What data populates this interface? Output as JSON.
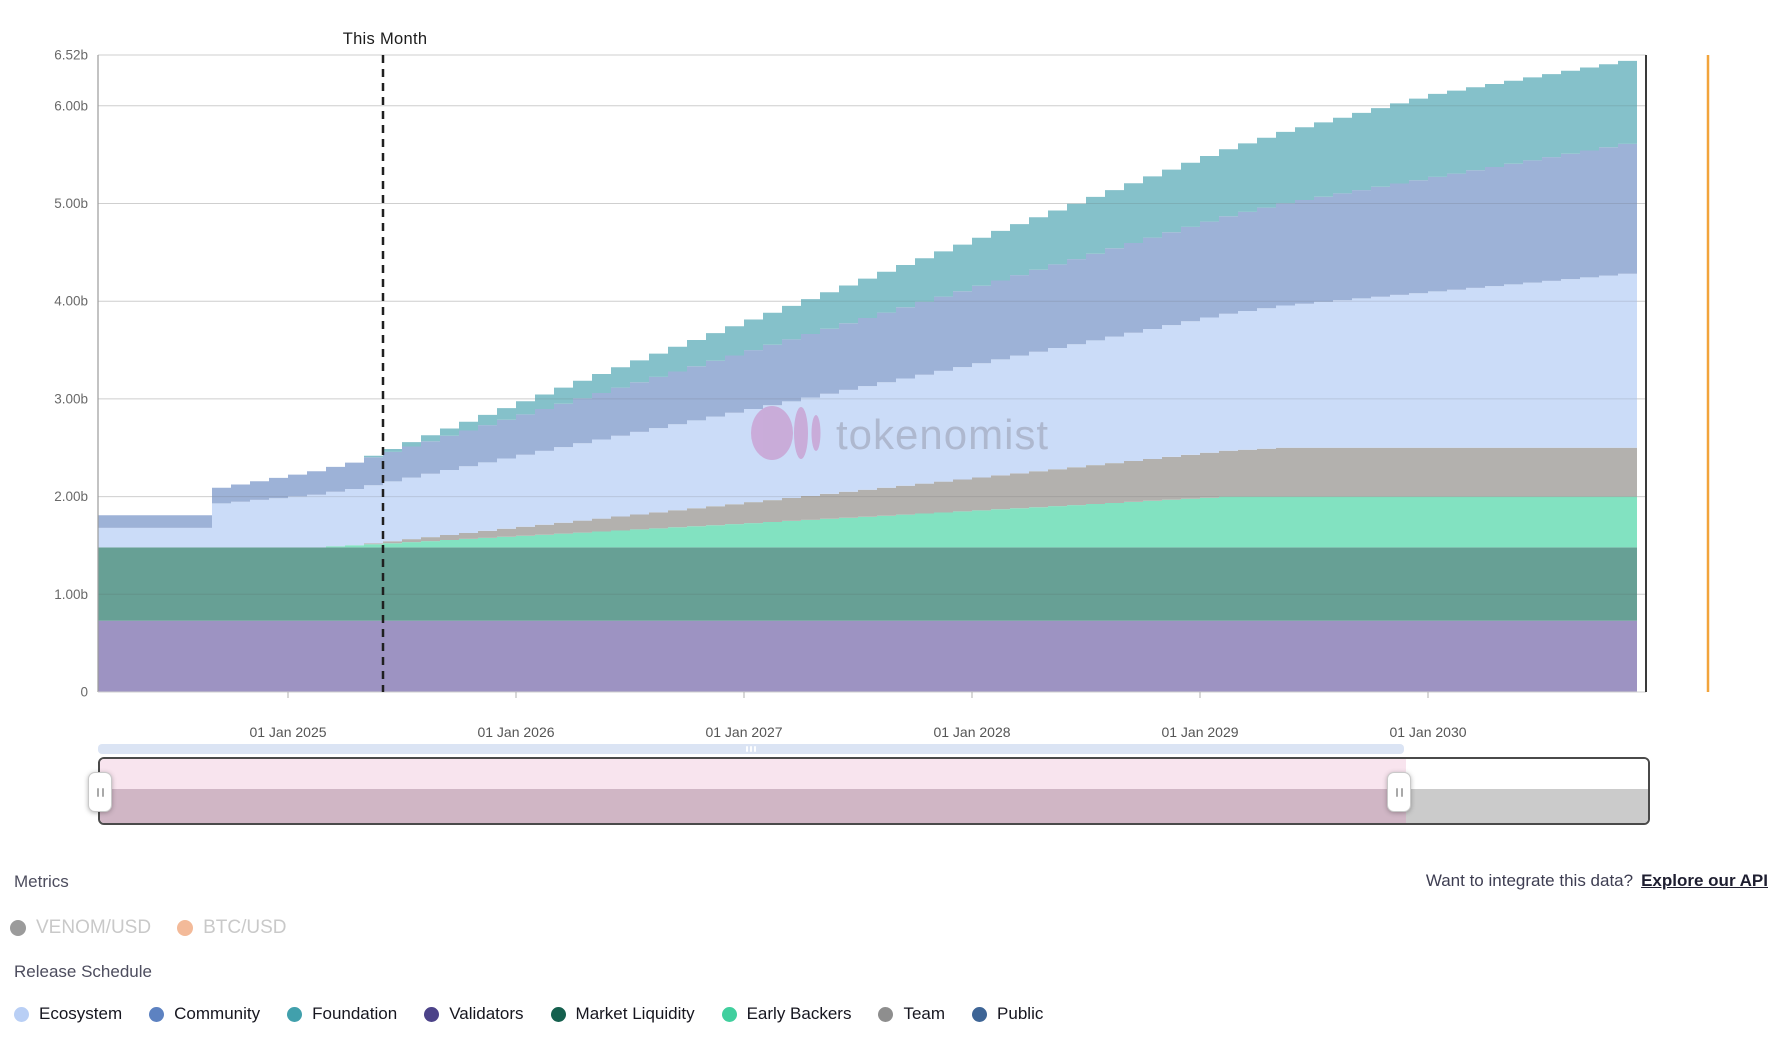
{
  "watermark": {
    "brand": "tokenomist"
  },
  "chart_data": {
    "type": "area",
    "stacked": true,
    "step": "monthly",
    "title": "",
    "x_start": "Mar 2024",
    "x_end": "Nov 2030",
    "months": 81,
    "y_unit": "billions of tokens",
    "ylim": [
      0,
      6.52
    ],
    "grid": true,
    "y_ticks": [
      {
        "v": 6.52,
        "label": "6.52b"
      },
      {
        "v": 6,
        "label": "6.00b"
      },
      {
        "v": 5,
        "label": "5.00b"
      },
      {
        "v": 4,
        "label": "4.00b"
      },
      {
        "v": 3,
        "label": "3.00b"
      },
      {
        "v": 2,
        "label": "2.00b"
      },
      {
        "v": 1,
        "label": "1.00b"
      },
      {
        "v": 0,
        "label": "0"
      }
    ],
    "x_ticks": [
      {
        "m": 10,
        "label": "01 Jan 2025"
      },
      {
        "m": 22,
        "label": "01 Jan 2026"
      },
      {
        "m": 34,
        "label": "01 Jan 2027"
      },
      {
        "m": 46,
        "label": "01 Jan 2028"
      },
      {
        "m": 58,
        "label": "01 Jan 2029"
      },
      {
        "m": 70,
        "label": "01 Jan 2030"
      }
    ],
    "annotation": {
      "label": "This Month",
      "m": 15
    },
    "series_note": "values in billions, estimated from gridlines; breakpoints [monthIndex, value] with linear vesting between, rendered as monthly steps; stacked bottom-to-top in listed order",
    "series": [
      {
        "name": "Validators",
        "fill": "#9d93c2",
        "breakpoints": [
          [
            0,
            0.73
          ],
          [
            80,
            0.73
          ]
        ]
      },
      {
        "name": "Market Liquidity",
        "fill": "#67a095",
        "breakpoints": [
          [
            0,
            0.75
          ],
          [
            80,
            0.75
          ]
        ]
      },
      {
        "name": "Early Backers",
        "fill": "#82e2c1",
        "breakpoints": [
          [
            0,
            0
          ],
          [
            11,
            0
          ],
          [
            59,
            0.52
          ],
          [
            80,
            0.52
          ]
        ]
      },
      {
        "name": "Team",
        "fill": "#b3b1ae",
        "breakpoints": [
          [
            0,
            0
          ],
          [
            13,
            0
          ],
          [
            62,
            0.5
          ],
          [
            80,
            0.5
          ]
        ]
      },
      {
        "name": "Ecosystem",
        "fill": "#cbdcf8",
        "breakpoints": [
          [
            0,
            0.2
          ],
          [
            5,
            0.2
          ],
          [
            6,
            0.45
          ],
          [
            80,
            1.78
          ]
        ]
      },
      {
        "name": "Community",
        "fill": "#9db2d7",
        "breakpoints": [
          [
            0,
            0.13
          ],
          [
            5,
            0.13
          ],
          [
            6,
            0.16
          ],
          [
            80,
            1.33
          ]
        ]
      },
      {
        "name": "Foundation",
        "fill": "#85c1ca",
        "breakpoints": [
          [
            0,
            0
          ],
          [
            13,
            0
          ],
          [
            70,
            0.85
          ],
          [
            80,
            0.85
          ]
        ]
      },
      {
        "name": "Public",
        "fill": "#3e6596",
        "breakpoints": [
          [
            0,
            0
          ],
          [
            80,
            0
          ]
        ]
      }
    ],
    "axis_colors": {
      "grid": "#e8e8e8",
      "left_axis": "#9b9b9b",
      "bottom_axis": "#cfcfcf",
      "right_border": "#3a3a3a",
      "price_axis_line": "#f2a43b",
      "tick_label": "#555555",
      "y_label": "#696969",
      "annotation_line": "#1f1f1f"
    }
  },
  "navigator": {
    "track_color": "#dbe4f4",
    "selection_top_color": "#f8e4ee",
    "selection_bottom_color": "#d0b6c5",
    "unselected_bottom_color": "#cbcbcb",
    "border_color": "#4a4a4a"
  },
  "metrics": {
    "heading": "Metrics",
    "items": [
      {
        "label": "VENOM/USD",
        "dot_color": "#9b9b9b",
        "enabled": false
      },
      {
        "label": "BTC/USD",
        "dot_color": "#f3ba99",
        "enabled": false
      }
    ]
  },
  "api": {
    "prompt": "Want to integrate this data?",
    "link_label": "Explore our API"
  },
  "release_schedule": {
    "heading": "Release Schedule",
    "legend": [
      {
        "label": "Ecosystem",
        "color": "#b9cff5"
      },
      {
        "label": "Community",
        "color": "#5d82c1"
      },
      {
        "label": "Foundation",
        "color": "#41a0ac"
      },
      {
        "label": "Validators",
        "color": "#4c4389"
      },
      {
        "label": "Market Liquidity",
        "color": "#15604e"
      },
      {
        "label": "Early Backers",
        "color": "#41cf9e"
      },
      {
        "label": "Team",
        "color": "#8e8e8e"
      },
      {
        "label": "Public",
        "color": "#3e6596"
      }
    ]
  }
}
